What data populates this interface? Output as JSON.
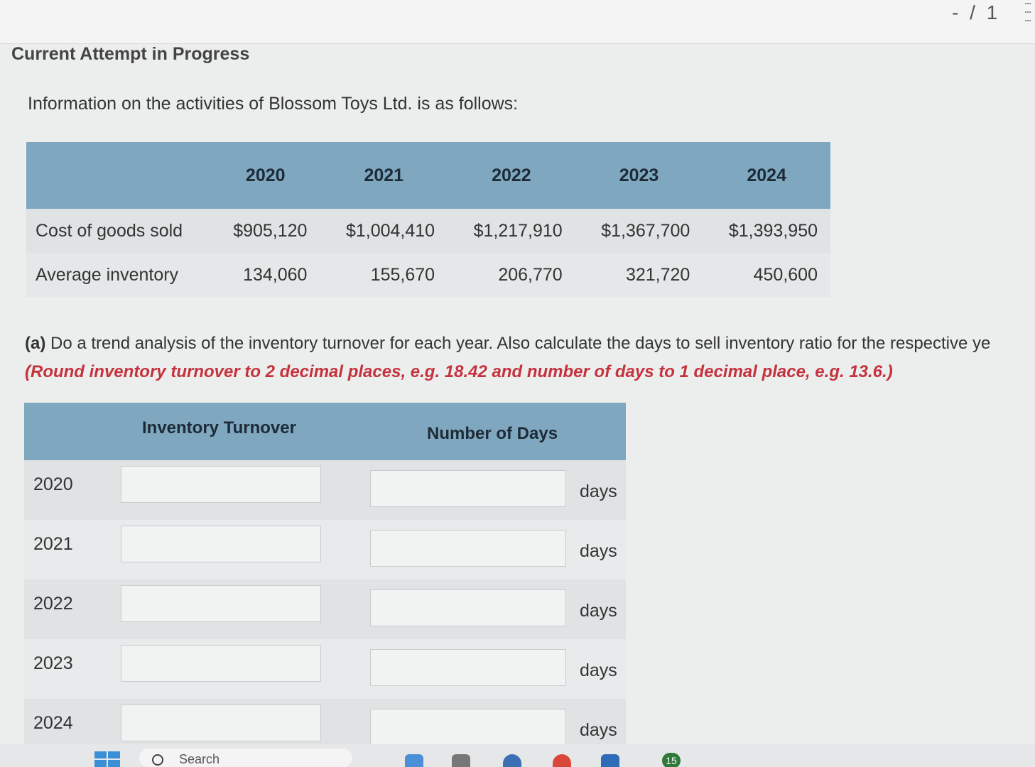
{
  "header": {
    "score": "- / 1"
  },
  "attempt_title": "Current Attempt in Progress",
  "intro": "Information on the activities of Blossom Toys Ltd. is as follows:",
  "info_table": {
    "years": [
      "2020",
      "2021",
      "2022",
      "2023",
      "2024"
    ],
    "rows": [
      {
        "label": "Cost of goods sold",
        "values": [
          "$905,120",
          "$1,004,410",
          "$1,217,910",
          "$1,367,700",
          "$1,393,950"
        ]
      },
      {
        "label": "Average inventory",
        "values": [
          "134,060",
          "155,670",
          "206,770",
          "321,720",
          "450,600"
        ]
      }
    ]
  },
  "question": {
    "part": "(a)",
    "text": "Do a trend analysis of the inventory turnover for each year. Also calculate the days to sell inventory ratio for the respective ye",
    "rounding": "(Round inventory turnover to 2 decimal places, e.g. 18.42 and number of days to 1 decimal place, e.g. 13.6.)"
  },
  "answer_table": {
    "col_turnover": "Inventory Turnover",
    "col_days": "Number of Days",
    "unit": "days",
    "rows": [
      {
        "year": "2020",
        "turnover": "",
        "days": ""
      },
      {
        "year": "2021",
        "turnover": "",
        "days": ""
      },
      {
        "year": "2022",
        "turnover": "",
        "days": ""
      },
      {
        "year": "2023",
        "turnover": "",
        "days": ""
      },
      {
        "year": "2024",
        "turnover": "",
        "days": ""
      }
    ]
  },
  "taskbar": {
    "search_placeholder": "Search",
    "badge_count": "15",
    "start_icon": "windows-icon",
    "accent": "#3b8fd6"
  }
}
